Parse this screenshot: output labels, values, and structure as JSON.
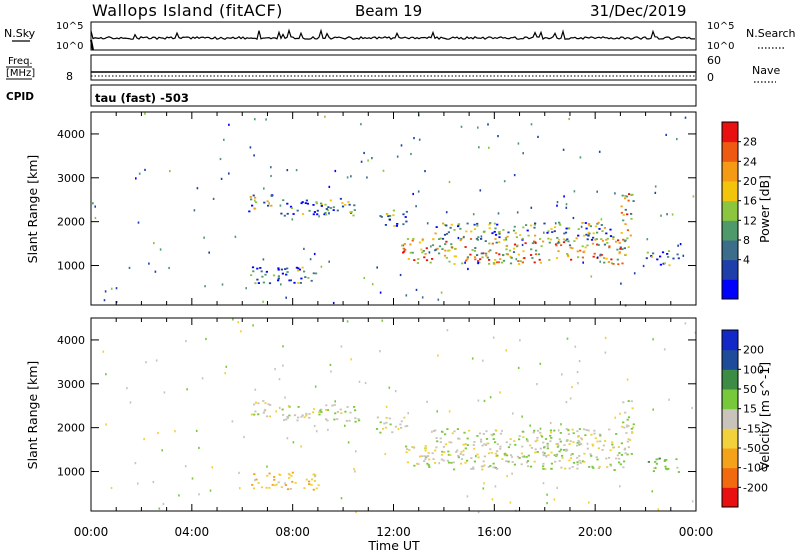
{
  "header": {
    "site": "Wallops Island (fitACF)",
    "beam": "Beam 19",
    "date": "31/Dec/2019"
  },
  "top_panels": {
    "nsky_label": "N.Sky",
    "nsky_ticks": [
      "10^5",
      "10^0"
    ],
    "nsearch_label": "N.Search",
    "nsearch_ticks": [
      "10^5",
      "10^0"
    ],
    "freq_label": [
      "Freq.",
      "[MHz]"
    ],
    "freq_tick": "8",
    "nave_label": "Nave",
    "nave_ticks": [
      "60",
      "0"
    ],
    "cpid_label": "CPID",
    "cpid_value": "tau (fast) -503"
  },
  "colors": {
    "power": [
      "#0000ff",
      "#1e3faa",
      "#3c6e8c",
      "#4e9a6a",
      "#8cc63e",
      "#f2c40c",
      "#f59a14",
      "#ef5a12",
      "#e81010"
    ],
    "velocity": [
      "#e81010",
      "#f26a10",
      "#f4a21a",
      "#f2d23c",
      "#c8c4bc",
      "#78c83c",
      "#3c8c46",
      "#1e4b9a",
      "#1428c8"
    ],
    "gray_scatter": "#c8c4bc"
  },
  "chart_data": [
    {
      "type": "heatmap",
      "panel": "power",
      "ylabel": "Slant Range [km]",
      "yticks": [
        "4000",
        "3000",
        "2000",
        "1000"
      ],
      "ylim": [
        100,
        4500
      ],
      "xlim_hours": [
        0,
        24
      ],
      "colorbar_label": "Power [dB]",
      "colorbar_ticks": [
        "28",
        "24",
        "20",
        "16",
        "12",
        "8",
        "4"
      ],
      "colorbar_range": [
        0,
        32
      ],
      "echo_regions": [
        {
          "t0": 6.2,
          "t1": 7.2,
          "r0": 2250,
          "r1": 2650,
          "level": 12
        },
        {
          "t0": 7.5,
          "t1": 10.6,
          "r0": 2150,
          "r1": 2550,
          "level": 9
        },
        {
          "t0": 6.3,
          "t1": 9.0,
          "r0": 600,
          "r1": 1000,
          "level": 8
        },
        {
          "t0": 11.3,
          "t1": 12.5,
          "r0": 1900,
          "r1": 2300,
          "level": 10
        },
        {
          "t0": 12.3,
          "t1": 21.3,
          "r0": 1050,
          "r1": 1650,
          "level": 20
        },
        {
          "t0": 13.5,
          "t1": 20.8,
          "r0": 1600,
          "r1": 2000,
          "level": 12
        },
        {
          "t0": 21.0,
          "t1": 21.5,
          "r0": 1400,
          "r1": 2700,
          "level": 18
        },
        {
          "t0": 22.0,
          "t1": 23.3,
          "r0": 1000,
          "r1": 1350,
          "level": 8
        }
      ]
    },
    {
      "type": "heatmap",
      "panel": "velocity",
      "ylabel": "Slant Range [km]",
      "yticks": [
        "4000",
        "3000",
        "2000",
        "1000"
      ],
      "ylim": [
        100,
        4500
      ],
      "xlim_hours": [
        0,
        24
      ],
      "colorbar_label": "Velocity [m s^-1]",
      "colorbar_ticks": [
        "200",
        "100",
        "50",
        "15",
        "-15",
        "-50",
        "-100",
        "-200"
      ],
      "colorbar_range": [
        -250,
        250
      ],
      "xticks": [
        "00:00",
        "04:00",
        "08:00",
        "12:00",
        "16:00",
        "20:00",
        "00:00"
      ],
      "xlabel": "Time UT",
      "echo_regions": [
        {
          "t0": 6.2,
          "t1": 7.2,
          "r0": 2250,
          "r1": 2650,
          "level": 0
        },
        {
          "t0": 7.5,
          "t1": 10.6,
          "r0": 2150,
          "r1": 2550,
          "level": 0
        },
        {
          "t0": 6.3,
          "t1": 9.0,
          "r0": 600,
          "r1": 1000,
          "level": -40
        },
        {
          "t0": 11.3,
          "t1": 12.5,
          "r0": 1900,
          "r1": 2300,
          "level": 0
        },
        {
          "t0": 12.3,
          "t1": 21.3,
          "r0": 1050,
          "r1": 1650,
          "level": 0
        },
        {
          "t0": 13.5,
          "t1": 20.8,
          "r0": 1600,
          "r1": 2000,
          "level": 0
        },
        {
          "t0": 21.0,
          "t1": 21.5,
          "r0": 1400,
          "r1": 2700,
          "level": 0
        },
        {
          "t0": 22.0,
          "t1": 23.3,
          "r0": 1000,
          "r1": 1350,
          "level": 30
        }
      ]
    }
  ]
}
